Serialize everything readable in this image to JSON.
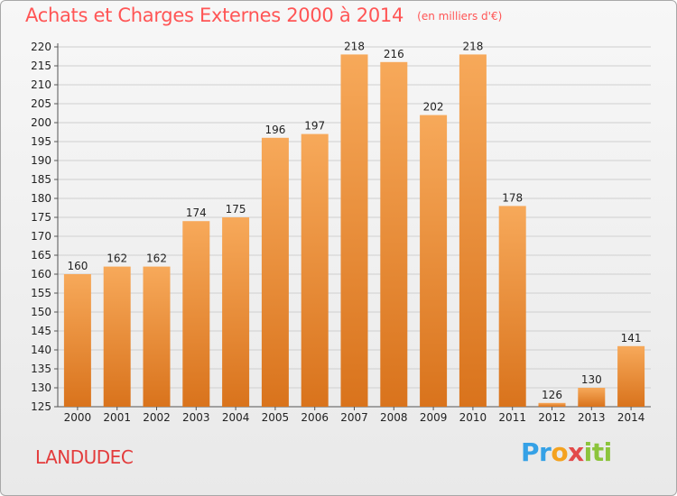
{
  "header": {
    "title": "Achats et Charges Externes 2000 à 2014",
    "unit": "(en milliers d'€)"
  },
  "footer": {
    "commune": "LANDUDEC",
    "logo_parts": [
      "Pr",
      "o",
      "x",
      "iti"
    ]
  },
  "colors": {
    "bar_top": "#f7a95a",
    "bar_bottom": "#d9731c",
    "title": "#ff5555",
    "grid": "#cfcfcf"
  },
  "chart_data": {
    "type": "bar",
    "title": "Achats et Charges Externes 2000 à 2014",
    "subtitle": "(en milliers d'€)",
    "categories": [
      "2000",
      "2001",
      "2002",
      "2003",
      "2004",
      "2005",
      "2006",
      "2007",
      "2008",
      "2009",
      "2010",
      "2011",
      "2012",
      "2013",
      "2014"
    ],
    "values": [
      160,
      162,
      162,
      174,
      175,
      196,
      197,
      218,
      216,
      202,
      218,
      178,
      126,
      130,
      141
    ],
    "ylim": [
      125,
      220
    ],
    "yticks": [
      125,
      130,
      135,
      140,
      145,
      150,
      155,
      160,
      165,
      170,
      175,
      180,
      185,
      190,
      195,
      200,
      205,
      210,
      215,
      220
    ],
    "xlabel": "",
    "ylabel": "",
    "grid": true,
    "data_labels": true
  }
}
